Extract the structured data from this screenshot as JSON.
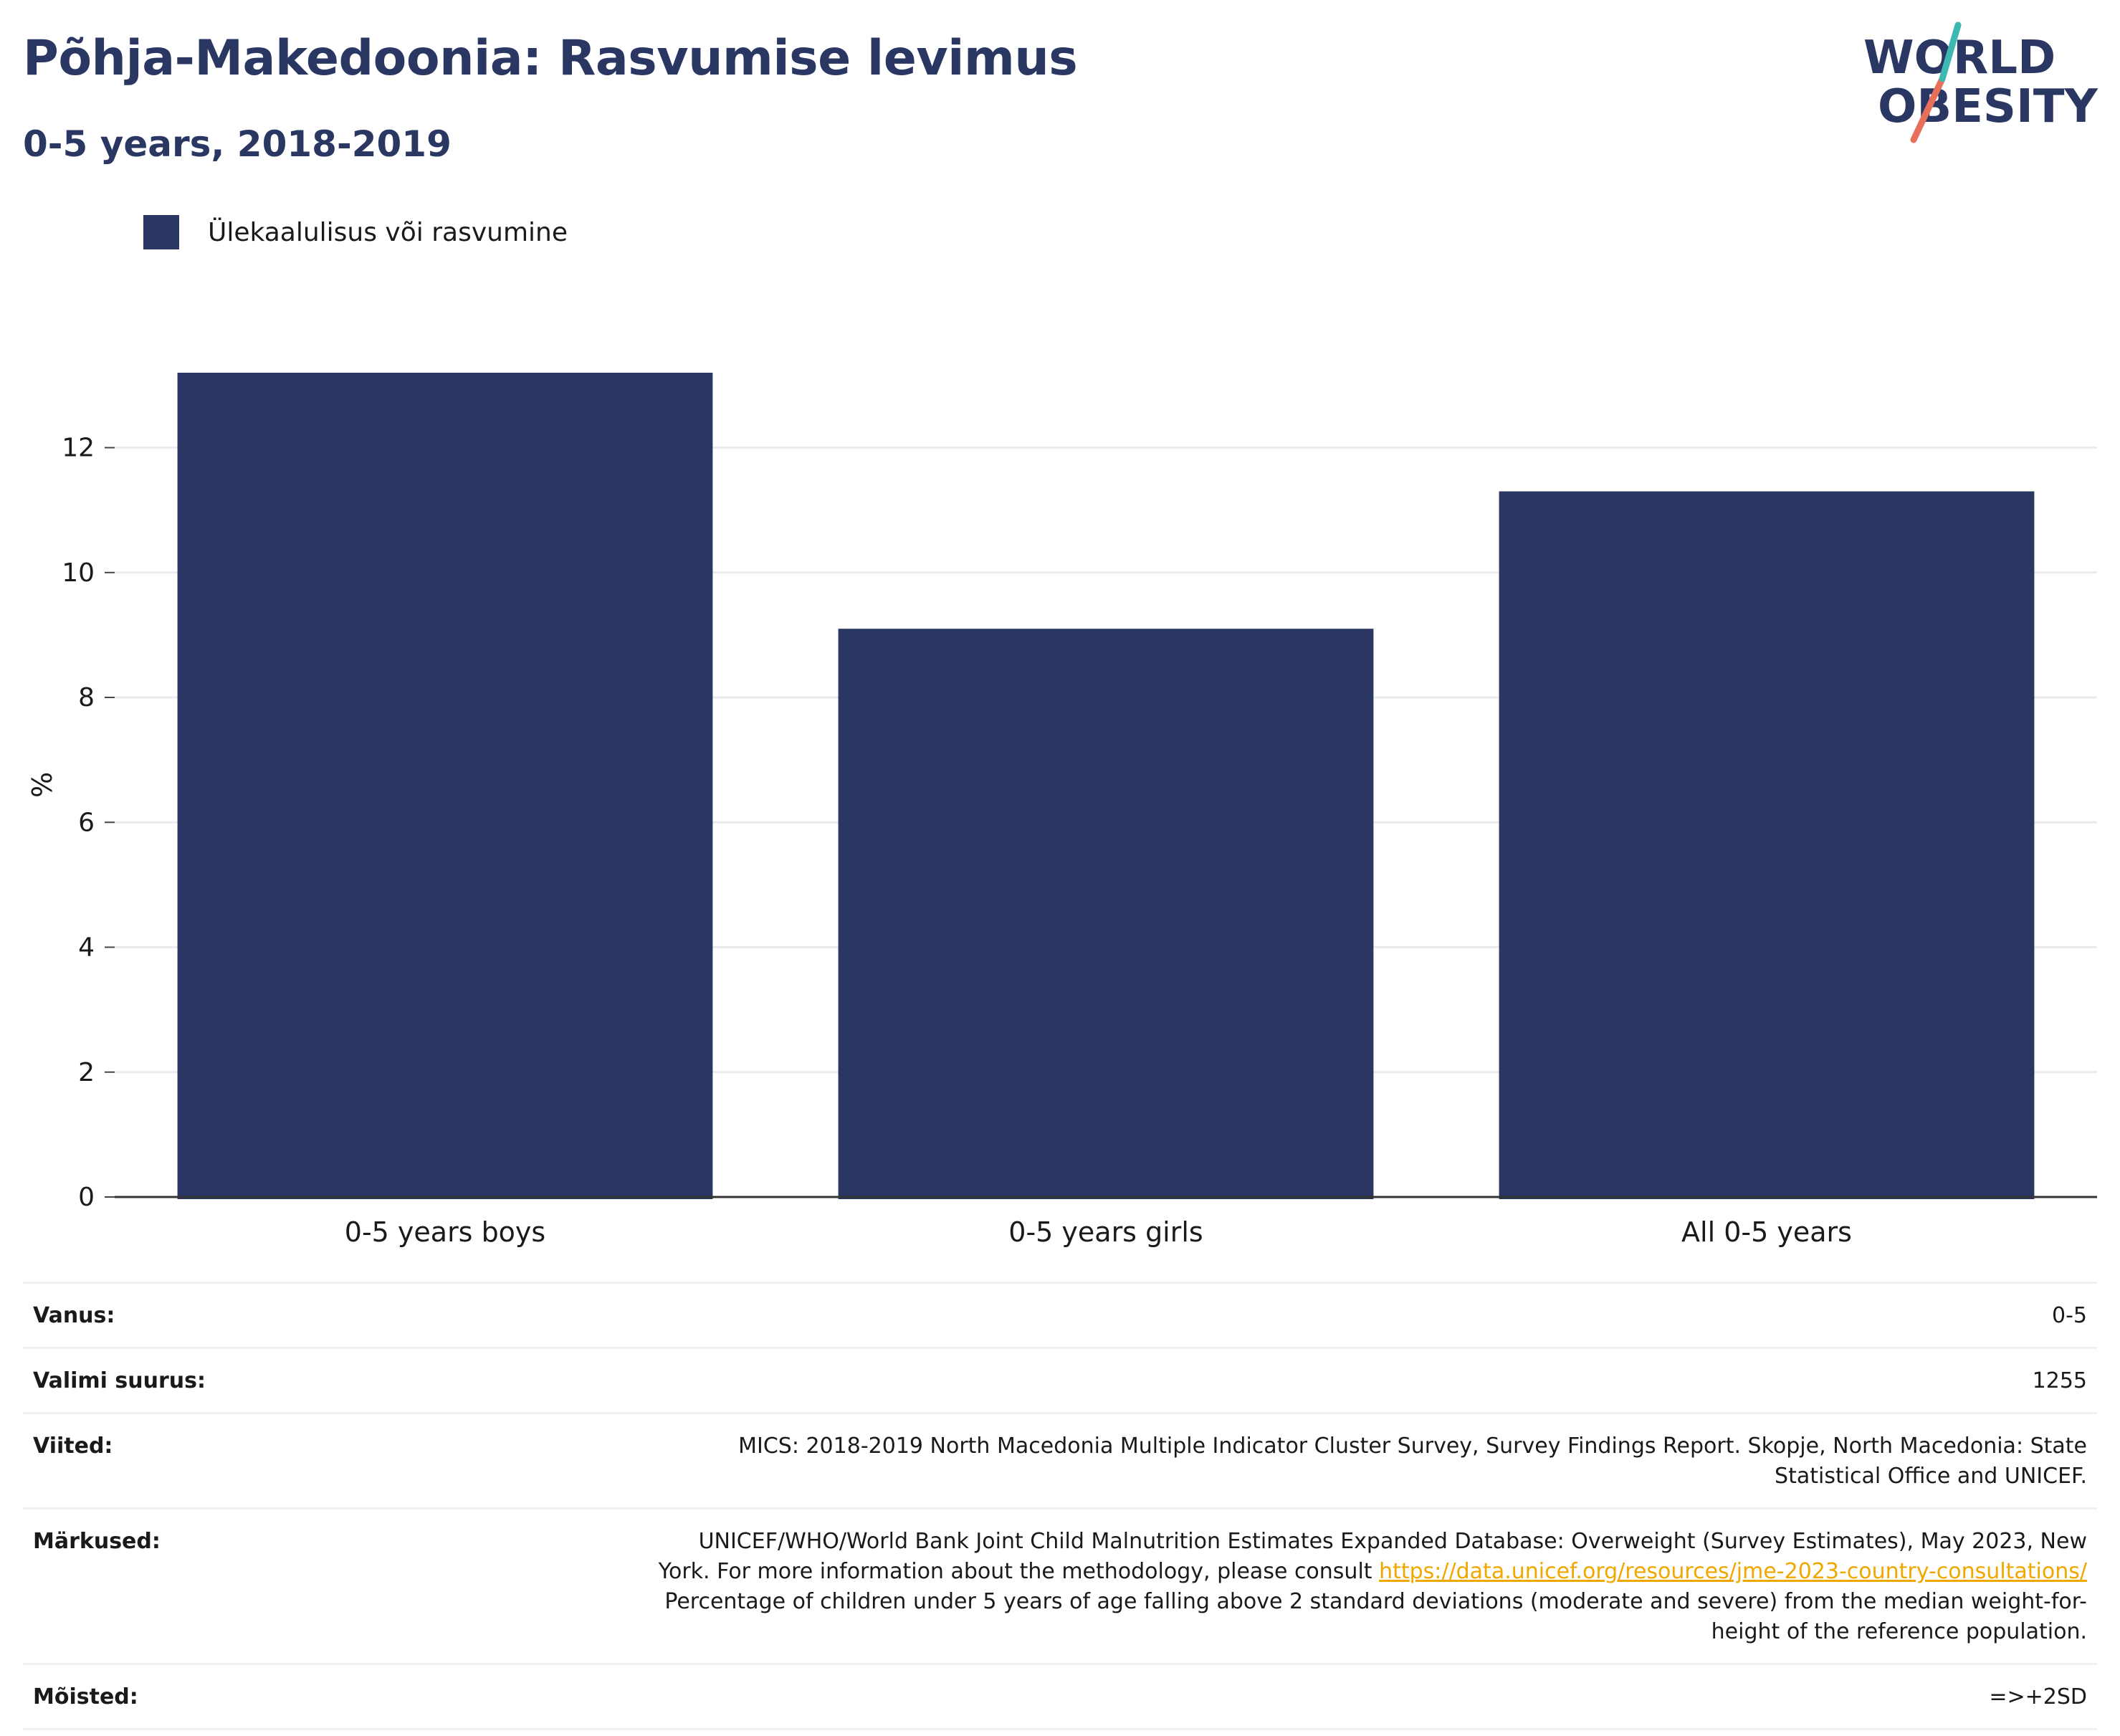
{
  "header": {
    "title": "Põhja-Makedoonia: Rasvumise levimus",
    "subtitle": "0-5 years, 2018-2019"
  },
  "logo": {
    "line1": "WORLD",
    "line2": "OBESITY",
    "colors": {
      "text": "#2a3763",
      "slash_top": "#3fb8b4",
      "slash_bottom": "#e8705a"
    }
  },
  "legend": {
    "label": "Ülekaalulisus või rasvumine",
    "color": "#2a3763"
  },
  "chart_data": {
    "type": "bar",
    "categories": [
      "0-5 years boys",
      "0-5 years girls",
      "All 0-5 years"
    ],
    "series": [
      {
        "name": "Ülekaalulisus või rasvumine",
        "values": [
          13.2,
          9.1,
          11.3
        ],
        "color": "#2a3763"
      }
    ],
    "ylabel": "%",
    "ylim": [
      0,
      13.2
    ],
    "yticks": [
      0,
      2,
      4,
      6,
      8,
      10,
      12
    ],
    "grid": true,
    "legend_position": "top-left"
  },
  "meta": {
    "age": {
      "label": "Vanus:",
      "value": "0-5"
    },
    "sample": {
      "label": "Valimi suurus:",
      "value": "1255"
    },
    "refs": {
      "label": "Viited:",
      "value1": "MICS: 2018-2019 North Macedonia Multiple Indicator Cluster Survey, Survey Findings Report. Skopje, North Macedonia: State",
      "value2": "Statistical Office and UNICEF."
    },
    "notes": {
      "label": "Märkused:",
      "line1": "UNICEF/WHO/World Bank Joint Child Malnutrition Estimates Expanded Database: Overweight (Survey Estimates), May 2023, New",
      "line2_pre": "York. For more information about the methodology, please consult",
      "link": "https://data.unicef.org/resources/jme-2023-country-consultations/",
      "line3": "Percentage of children under 5 years of age falling above 2 standard deviations (moderate and severe) from the median weight-for-",
      "line4": "height of the reference population."
    },
    "definitions": {
      "label": "Mõisted:",
      "value": "=>+2SD"
    }
  }
}
